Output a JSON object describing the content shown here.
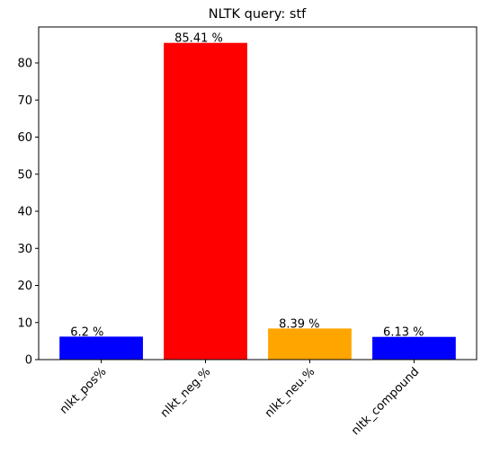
{
  "chart_data": {
    "type": "bar",
    "title": "NLTK query: stf",
    "xlabel": "",
    "ylabel": "",
    "categories": [
      "nlkt_pos%",
      "nlkt_neg.%",
      "nlkt_neu.%",
      "nltk_compound"
    ],
    "values": [
      6.2,
      85.41,
      8.39,
      6.13
    ],
    "data_labels": [
      "6.2 %",
      "85.41 %",
      "8.39 %",
      "6.13 %"
    ],
    "colors": [
      "#0000ff",
      "#ff0000",
      "#ffa500",
      "#0000ff"
    ],
    "ylim": [
      0,
      89.7
    ],
    "yticks": [
      0,
      10,
      20,
      30,
      40,
      50,
      60,
      70,
      80
    ],
    "grid": false,
    "xtick_rotation": 45
  }
}
